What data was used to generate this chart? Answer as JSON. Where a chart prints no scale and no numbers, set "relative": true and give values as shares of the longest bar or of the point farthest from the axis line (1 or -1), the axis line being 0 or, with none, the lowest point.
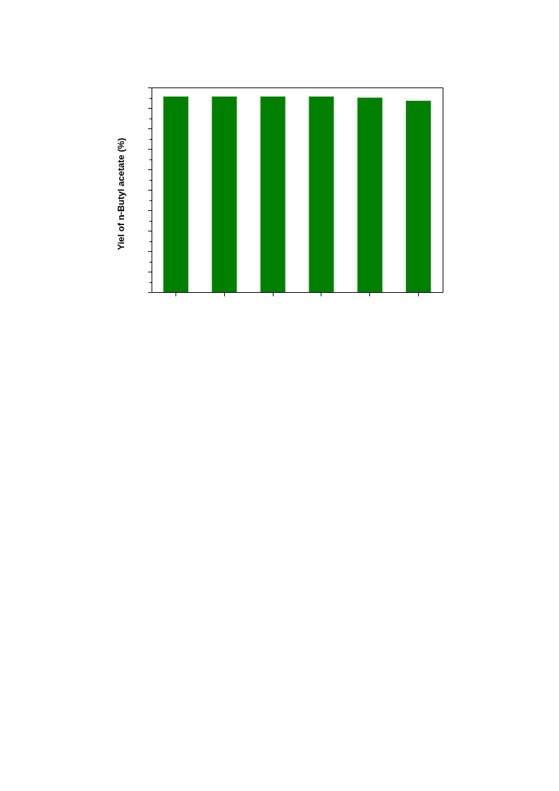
{
  "chart_data": {
    "type": "bar",
    "ylabel": "Yiel of n-Butyl acetate (%)",
    "categories": [
      null,
      null,
      null,
      null,
      null,
      null
    ],
    "values": [
      1,
      1,
      1,
      1,
      0.994,
      0.978
    ],
    "color": "#008000",
    "relative": true
  }
}
